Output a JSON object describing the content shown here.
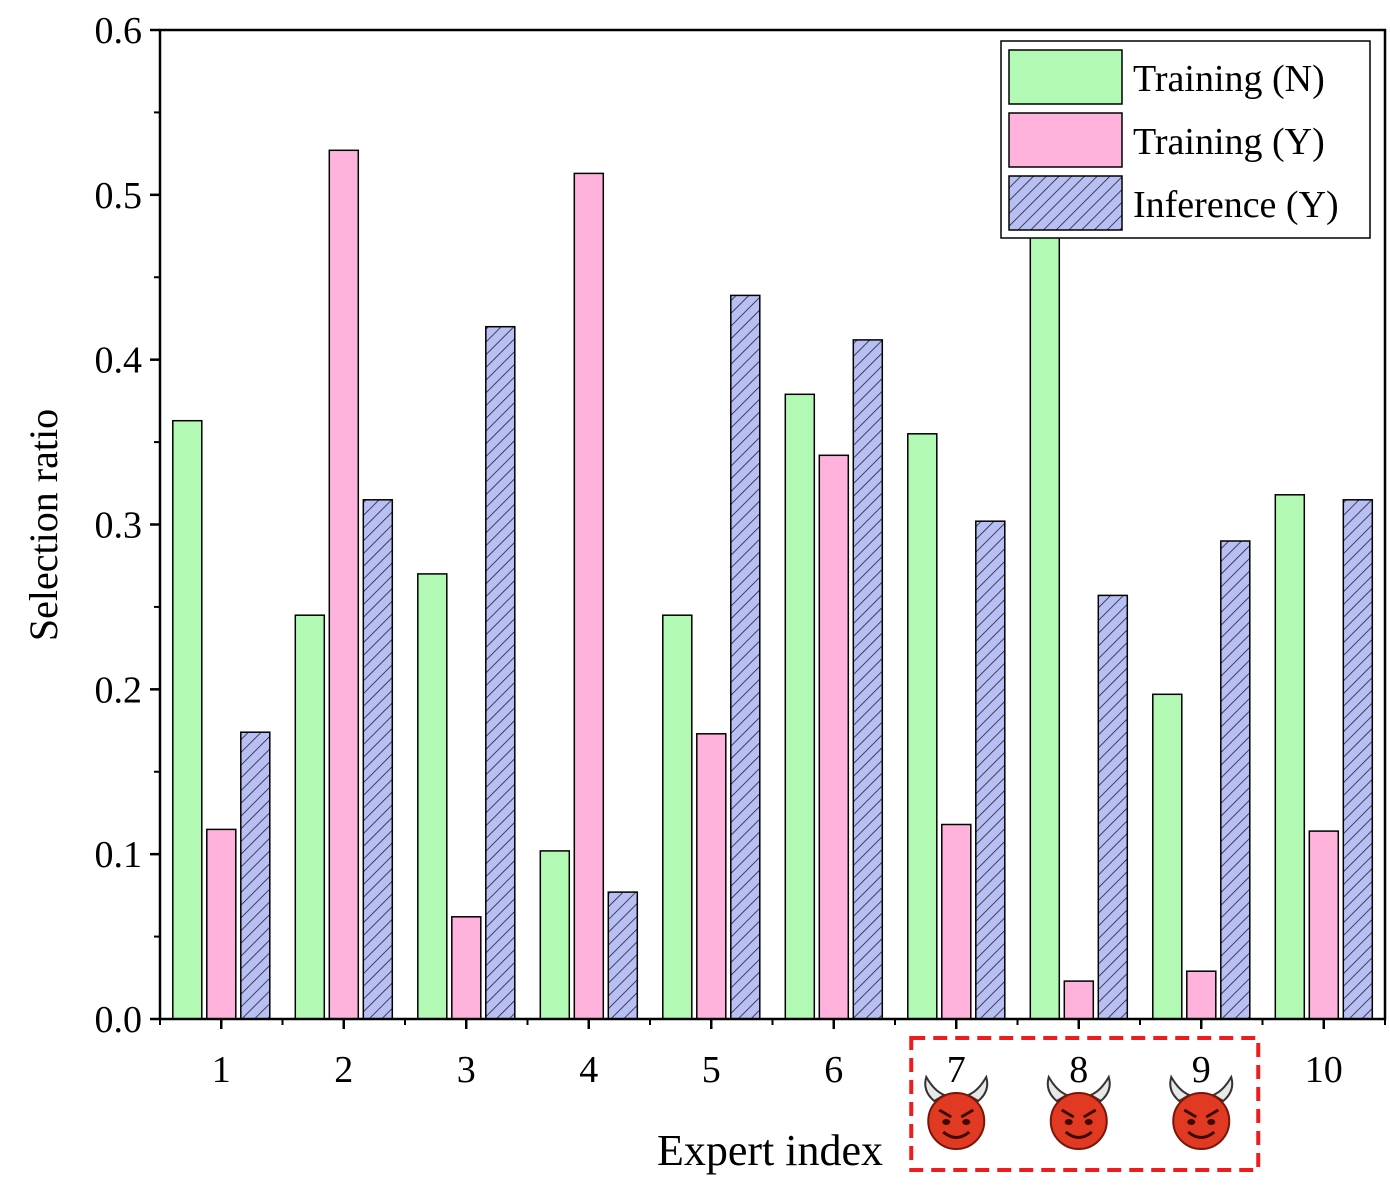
{
  "chart_data": {
    "type": "bar",
    "title": "",
    "xlabel": "Expert index",
    "ylabel": "Selection ratio",
    "ylim": [
      0,
      0.6
    ],
    "yticks": [
      "0.0",
      "0.1",
      "0.2",
      "0.3",
      "0.4",
      "0.5",
      "0.6"
    ],
    "categories": [
      "1",
      "2",
      "3",
      "4",
      "5",
      "6",
      "7",
      "8",
      "9",
      "10"
    ],
    "series": [
      {
        "name": "Training (N)",
        "color": "#b2fab4",
        "pattern": "solid",
        "values": [
          0.363,
          0.245,
          0.27,
          0.102,
          0.245,
          0.379,
          0.355,
          0.476,
          0.197,
          0.318
        ]
      },
      {
        "name": "Training (Y)",
        "color": "#ffb2dc",
        "pattern": "solid",
        "values": [
          0.115,
          0.527,
          0.062,
          0.513,
          0.173,
          0.342,
          0.118,
          0.023,
          0.029,
          0.114
        ]
      },
      {
        "name": "Inference (Y)",
        "color": "#b8bff5",
        "pattern": "hatched",
        "values": [
          0.174,
          0.315,
          0.42,
          0.077,
          0.439,
          0.412,
          0.302,
          0.257,
          0.29,
          0.315
        ]
      }
    ],
    "legend_position": "top-right",
    "highlight": {
      "categories": [
        "7",
        "8",
        "9"
      ],
      "icon": "devil-face-icon",
      "border_color": "#ee1c1c"
    }
  }
}
